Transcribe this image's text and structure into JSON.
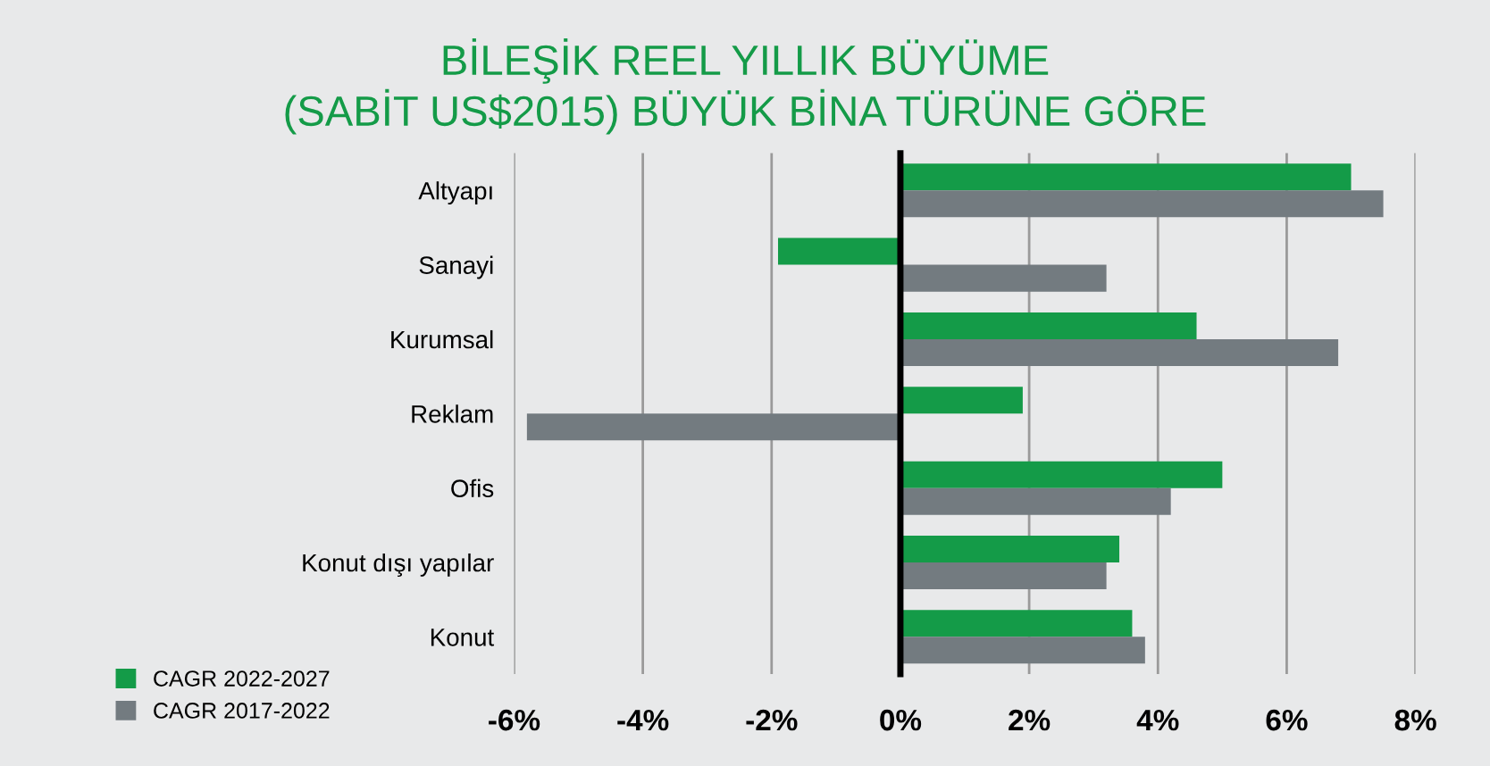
{
  "chart_data": {
    "type": "bar",
    "orientation": "horizontal",
    "title": "BİLEŞİK REEL YILLIK BÜYÜME\n(SABİT US$2015) BÜYÜK BİNA TÜRÜNE GÖRE",
    "categories": [
      "Altyapı",
      "Sanayi",
      "Kurumsal",
      "Reklam",
      "Ofis",
      "Konut dışı yapılar",
      "Konut"
    ],
    "series": [
      {
        "name": "CAGR 2022-2027",
        "color": "#149b48",
        "values": [
          7.0,
          -1.9,
          4.6,
          1.9,
          5.0,
          3.4,
          3.6
        ]
      },
      {
        "name": "CAGR 2017-2022",
        "color": "#737b80",
        "values": [
          7.5,
          3.2,
          6.8,
          -5.8,
          4.2,
          3.2,
          3.8
        ]
      }
    ],
    "xlim": [
      -6,
      8
    ],
    "xticks": [
      {
        "value": -6,
        "label": "-6%"
      },
      {
        "value": -4,
        "label": "-4%"
      },
      {
        "value": -2,
        "label": "-2%"
      },
      {
        "value": 0,
        "label": "0%"
      },
      {
        "value": 2,
        "label": "2%"
      },
      {
        "value": 4,
        "label": "4%"
      },
      {
        "value": 6,
        "label": "6%"
      },
      {
        "value": 8,
        "label": "8%"
      }
    ],
    "grid": "x",
    "legend": "bottom left"
  }
}
